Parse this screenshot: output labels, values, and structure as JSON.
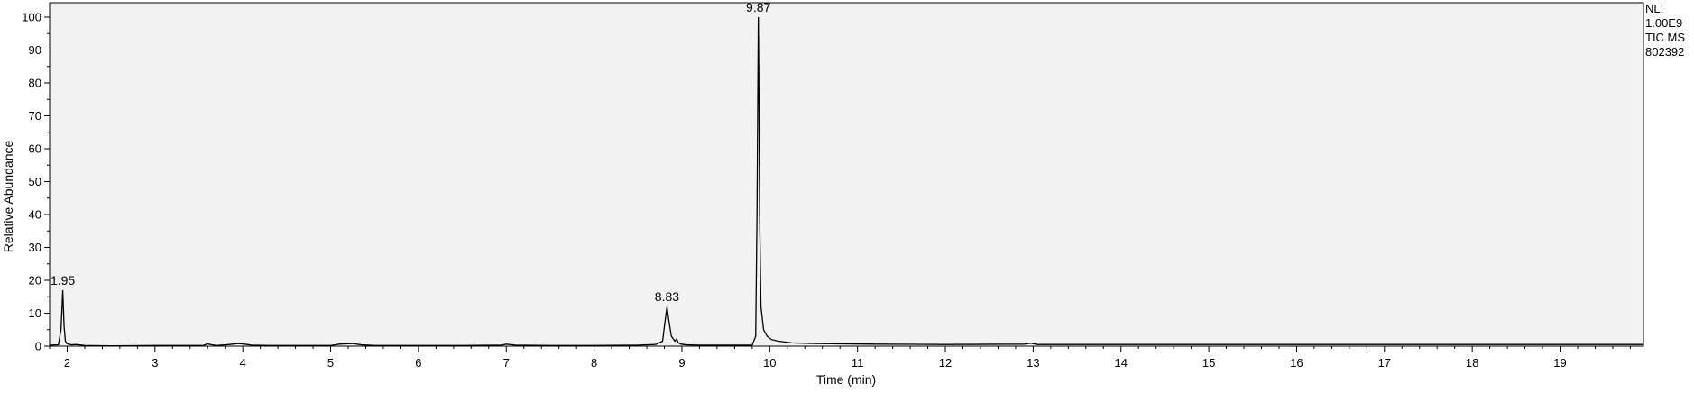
{
  "chart_data": {
    "type": "line",
    "xlabel": "Time (min)",
    "ylabel": "Relative Abundance",
    "xlim": [
      1.8,
      19.95
    ],
    "ylim": [
      0,
      100
    ],
    "x_major_ticks": [
      2,
      3,
      4,
      5,
      6,
      7,
      8,
      9,
      10,
      11,
      12,
      13,
      14,
      15,
      16,
      17,
      18,
      19
    ],
    "y_major_ticks": [
      0,
      10,
      20,
      30,
      40,
      50,
      60,
      70,
      80,
      90,
      100
    ],
    "grid": false,
    "series": [
      {
        "color": "#000000",
        "x": [
          1.8,
          1.9,
          1.93,
          1.95,
          1.965,
          1.98,
          2.0,
          2.05,
          2.1,
          2.2,
          2.5,
          3.0,
          3.55,
          3.6,
          3.65,
          3.7,
          3.85,
          3.95,
          4.05,
          4.1,
          4.3,
          5.0,
          5.1,
          5.25,
          5.35,
          5.5,
          6.5,
          6.95,
          7.0,
          7.1,
          7.5,
          8.0,
          8.5,
          8.7,
          8.78,
          8.81,
          8.83,
          8.85,
          8.88,
          8.92,
          8.94,
          8.96,
          8.99,
          9.05,
          9.2,
          9.5,
          9.8,
          9.84,
          9.855,
          9.865,
          9.87,
          9.875,
          9.885,
          9.9,
          9.93,
          9.97,
          10.02,
          10.1,
          10.25,
          10.5,
          10.8,
          11.2,
          12.0,
          12.9,
          12.97,
          13.05,
          14.0,
          16.0,
          18.0,
          19.95
        ],
        "y": [
          0.3,
          0.4,
          5.0,
          17.0,
          6.0,
          1.5,
          0.7,
          0.4,
          0.5,
          0.2,
          0.1,
          0.2,
          0.2,
          0.7,
          0.4,
          0.2,
          0.5,
          0.8,
          0.5,
          0.3,
          0.2,
          0.2,
          0.6,
          0.8,
          0.4,
          0.2,
          0.2,
          0.3,
          0.6,
          0.3,
          0.2,
          0.2,
          0.3,
          0.5,
          1.5,
          8.0,
          12.0,
          8.0,
          3.0,
          1.5,
          2.2,
          1.0,
          0.6,
          0.4,
          0.3,
          0.3,
          0.3,
          3.0,
          40.0,
          80.0,
          100.0,
          85.0,
          40.0,
          12.0,
          5.0,
          3.0,
          2.0,
          1.5,
          1.0,
          0.8,
          0.7,
          0.6,
          0.5,
          0.6,
          0.9,
          0.5,
          0.5,
          0.5,
          0.5,
          0.5
        ]
      }
    ],
    "annotations": [
      {
        "label": "1.95",
        "x": 1.95,
        "y": 17.0
      },
      {
        "label": "8.83",
        "x": 8.83,
        "y": 12.0
      },
      {
        "label": "9.87",
        "x": 9.87,
        "y": 100.0
      }
    ],
    "side_text": [
      "NL:",
      "1.00E9",
      "TIC  MS",
      "802392"
    ]
  }
}
